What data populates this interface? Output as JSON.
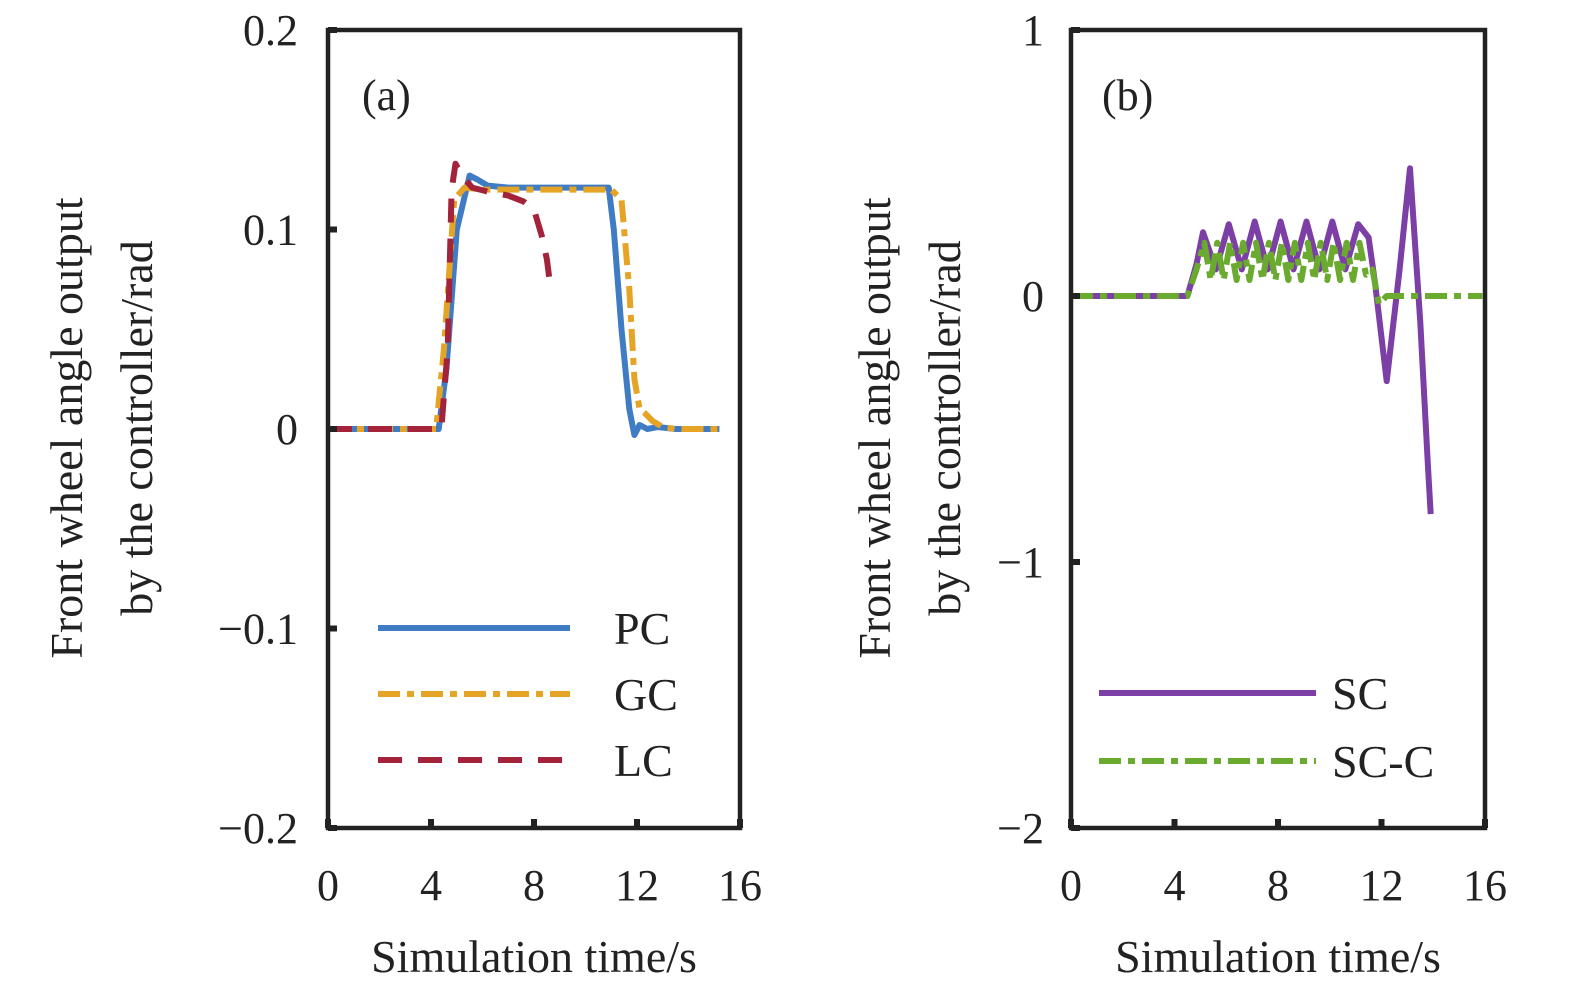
{
  "chart_data": [
    {
      "type": "line",
      "panel_label": "(a)",
      "xlabel": "Simulation time/s",
      "ylabel": [
        "Front wheel angle output",
        "by the controller/rad"
      ],
      "xlim": [
        0,
        16
      ],
      "ylim": [
        -0.2,
        0.2
      ],
      "xticks": [
        0,
        4,
        8,
        12,
        16
      ],
      "xtick_labels": [
        "0",
        "4",
        "8",
        "12",
        "16"
      ],
      "yticks": [
        -0.2,
        -0.1,
        0,
        0.1,
        0.2
      ],
      "ytick_labels": [
        "−0.2",
        "−0.1",
        "0",
        "0.1",
        "0.2"
      ],
      "legend_position": "bottom-right",
      "series": [
        {
          "name": "PC",
          "color": "#3f7cc4",
          "style": "solid",
          "x": [
            0,
            4.3,
            4.6,
            5.0,
            5.5,
            5.8,
            6.2,
            7,
            8,
            9,
            10,
            10.9,
            11.1,
            11.4,
            11.7,
            11.9,
            12.1,
            12.4,
            12.8,
            13.5,
            15.2
          ],
          "y": [
            0,
            0,
            0.03,
            0.1,
            0.127,
            0.125,
            0.122,
            0.121,
            0.121,
            0.121,
            0.121,
            0.121,
            0.1,
            0.05,
            0.01,
            -0.003,
            0.002,
            0.0,
            0.001,
            0,
            0
          ]
        },
        {
          "name": "GC",
          "color": "#e6a427",
          "style": "dashdot",
          "x": [
            0,
            4.2,
            4.5,
            4.9,
            5.3,
            6,
            7,
            8,
            9,
            10,
            11,
            11.4,
            11.7,
            11.9,
            12.1,
            12.3,
            12.6,
            13,
            13.5,
            15.2
          ],
          "y": [
            0,
            0,
            0.04,
            0.115,
            0.121,
            0.12,
            0.12,
            0.12,
            0.12,
            0.12,
            0.12,
            0.115,
            0.07,
            0.025,
            0.01,
            0.008,
            0.004,
            0.001,
            0,
            0
          ]
        },
        {
          "name": "LC",
          "color": "#a3233a",
          "style": "dashed",
          "x": [
            0,
            4.4,
            4.65,
            4.8,
            4.95,
            5.2,
            5.6,
            6.2,
            7,
            7.6,
            8.0,
            8.3,
            8.5,
            8.65
          ],
          "y": [
            0,
            0,
            0.04,
            0.12,
            0.133,
            0.127,
            0.121,
            0.119,
            0.117,
            0.114,
            0.11,
            0.097,
            0.085,
            0.07
          ]
        }
      ]
    },
    {
      "type": "line",
      "panel_label": "(b)",
      "xlabel": "Simulation time/s",
      "ylabel": [
        "Front wheel angle output",
        "by the controller/rad"
      ],
      "xlim": [
        0,
        16
      ],
      "ylim": [
        -2,
        1
      ],
      "xticks": [
        0,
        4,
        8,
        12,
        16
      ],
      "xtick_labels": [
        "0",
        "4",
        "8",
        "12",
        "16"
      ],
      "yticks": [
        -2,
        -1,
        0,
        1
      ],
      "ytick_labels": [
        "−2",
        "−1",
        "0",
        "1"
      ],
      "legend_position": "bottom-right",
      "series": [
        {
          "name": "SC",
          "color": "#7b3fa6",
          "style": "solid",
          "x": [
            0,
            4.5,
            4.85,
            5.1,
            5.6,
            6.1,
            6.6,
            7.1,
            7.6,
            8.1,
            8.6,
            9.1,
            9.6,
            10.1,
            10.6,
            11.1,
            11.5,
            11.75,
            12.2,
            12.7,
            13.1,
            13.5,
            13.8,
            13.9
          ],
          "y": [
            0,
            0,
            0.12,
            0.24,
            0.1,
            0.27,
            0.1,
            0.28,
            0.1,
            0.28,
            0.1,
            0.28,
            0.1,
            0.28,
            0.1,
            0.27,
            0.22,
            0.05,
            -0.32,
            0.1,
            0.48,
            -0.1,
            -0.65,
            -0.82
          ]
        },
        {
          "name": "SC-C",
          "color": "#6aaa2e",
          "style": "dashdot",
          "x": [
            0,
            4.5,
            4.85,
            5.15,
            5.4,
            5.65,
            5.9,
            6.15,
            6.4,
            6.65,
            6.9,
            7.15,
            7.4,
            7.65,
            7.9,
            8.15,
            8.4,
            8.65,
            8.9,
            9.15,
            9.4,
            9.65,
            9.9,
            10.15,
            10.4,
            10.65,
            10.9,
            11.15,
            11.4,
            11.65,
            11.9,
            12.2,
            15.9
          ],
          "y": [
            0,
            0,
            0.1,
            0.2,
            0.06,
            0.2,
            0.06,
            0.2,
            0.06,
            0.2,
            0.06,
            0.2,
            0.06,
            0.2,
            0.06,
            0.2,
            0.06,
            0.2,
            0.06,
            0.2,
            0.06,
            0.2,
            0.06,
            0.2,
            0.06,
            0.2,
            0.06,
            0.2,
            0.08,
            0.1,
            -0.03,
            0.0,
            0.0
          ]
        }
      ]
    }
  ]
}
